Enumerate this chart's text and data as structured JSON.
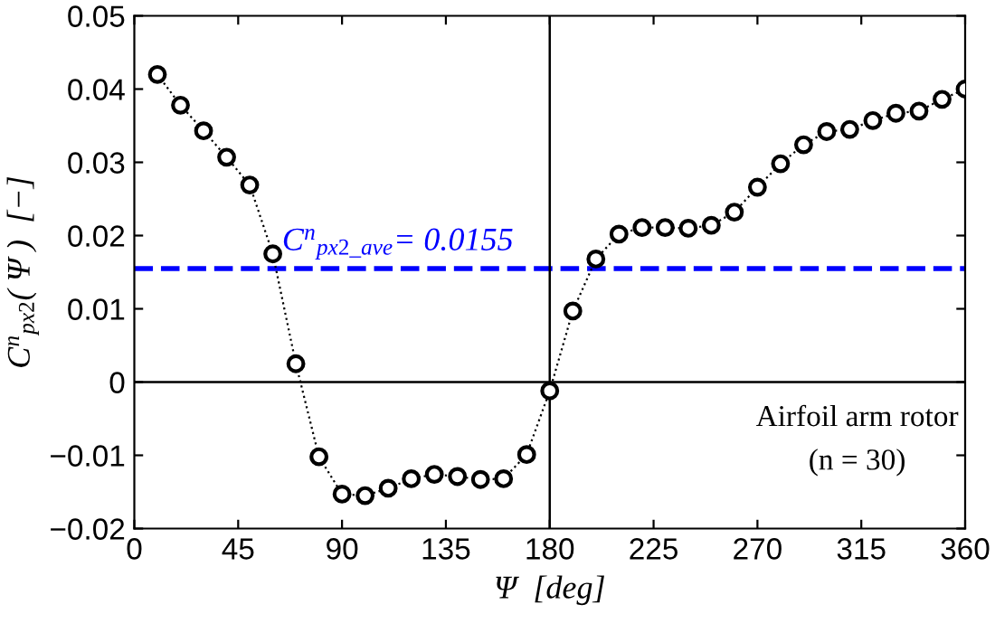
{
  "chart_data": {
    "type": "line",
    "xlabel": "Ψ  [deg]",
    "ylabel": "C$^{n}$$_{px2}$( Ψ )  [−]",
    "x": [
      10,
      20,
      30,
      40,
      50,
      60,
      70,
      80,
      90,
      100,
      110,
      120,
      130,
      140,
      150,
      160,
      170,
      180,
      190,
      200,
      210,
      220,
      230,
      240,
      250,
      260,
      270,
      280,
      290,
      300,
      310,
      320,
      330,
      340,
      350,
      360
    ],
    "series": [
      {
        "color": "#000000",
        "values": [
          0.042,
          0.0378,
          0.0343,
          0.0307,
          0.0269,
          0.0175,
          0.0025,
          -0.0102,
          -0.0153,
          -0.0155,
          -0.0145,
          -0.0132,
          -0.0126,
          -0.0129,
          -0.0133,
          -0.0132,
          -0.0099,
          -0.0012,
          0.0097,
          0.0168,
          0.0202,
          0.0211,
          0.0211,
          0.021,
          0.0214,
          0.0232,
          0.0266,
          0.0298,
          0.0324,
          0.0342,
          0.0345,
          0.0357,
          0.0367,
          0.037,
          0.0386,
          0.04
        ]
      }
    ],
    "marker": "circle",
    "line_style": "dotted",
    "grid": false,
    "legend": false,
    "xlim": [
      0,
      360
    ],
    "xticks": [
      0,
      45,
      90,
      135,
      180,
      225,
      270,
      315,
      360
    ],
    "ylim": [
      -0.02,
      0.05
    ],
    "yticks": [
      {
        "value": -0.02,
        "label": "−0.02"
      },
      {
        "value": -0.01,
        "label": "−0.01"
      },
      0,
      0.01,
      0.02,
      0.03,
      0.04,
      0.05
    ],
    "ref_lines": [
      {
        "axis": "y",
        "value": 0.0155,
        "label": "C$^{n}$$_{px2_ave}$= 0.0155",
        "color": "#0000ff",
        "line_style": "dashed"
      },
      {
        "axis": "y",
        "value": 0,
        "label": null,
        "color": "#000000",
        "line_style": "solid"
      },
      {
        "axis": "x",
        "value": 180,
        "label": null,
        "color": "#000000",
        "line_style": "solid"
      }
    ],
    "annotations": [
      "Airfoil arm rotor",
      "(n = 30)"
    ]
  }
}
